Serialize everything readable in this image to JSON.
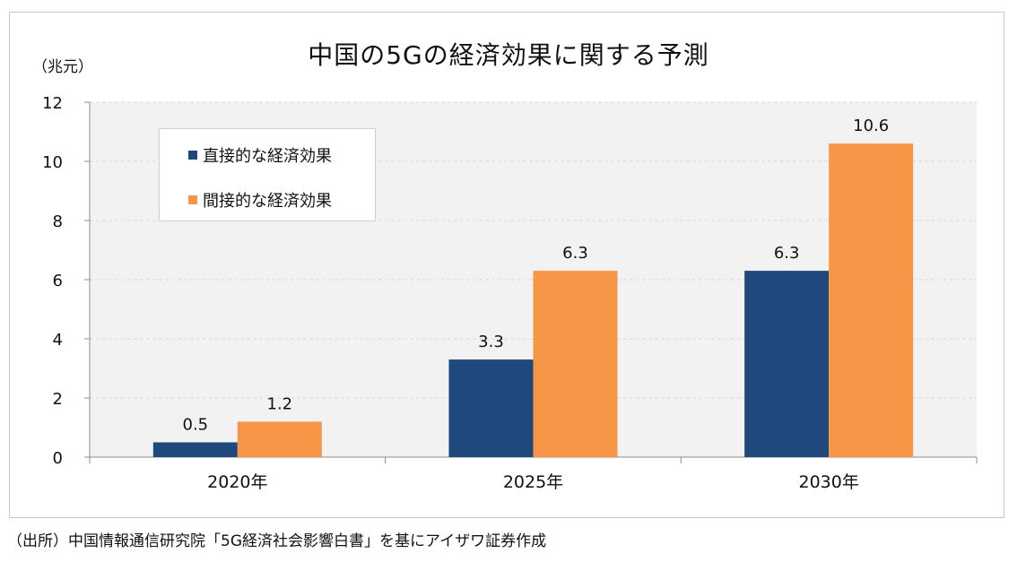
{
  "chart_data": {
    "type": "bar",
    "title": "中国の5Gの経済効果に関する予測",
    "ylabel": "（兆元）",
    "xlabel": "",
    "categories": [
      "2020年",
      "2025年",
      "2030年"
    ],
    "series": [
      {
        "name": "直接的な経済効果",
        "values": [
          0.5,
          3.3,
          6.3
        ],
        "color": "#1f497d"
      },
      {
        "name": "間接的な経済効果",
        "values": [
          1.2,
          6.3,
          10.6
        ],
        "color": "#f79646"
      }
    ],
    "ylim": [
      0,
      12
    ],
    "yticks": [
      0,
      2,
      4,
      6,
      8,
      10,
      12
    ],
    "data_labels": true,
    "grid": true,
    "legend_position": "top-left",
    "plot_background": "#f2f2f2",
    "gridline_color": "#d9d9d9"
  },
  "source_note": "（出所）中国情報通信研究院「5G経済社会影響白書」を基にアイザワ証券作成"
}
